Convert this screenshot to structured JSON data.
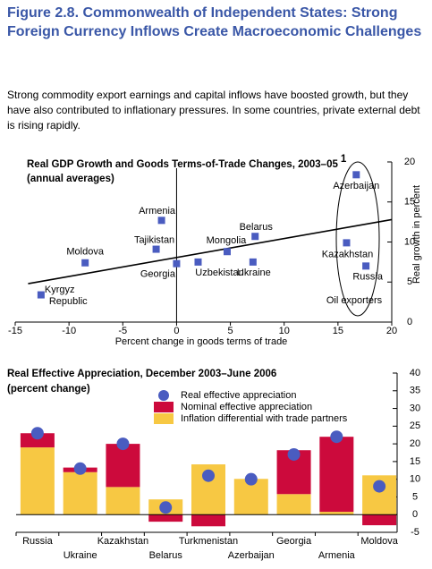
{
  "header": {
    "title": "Figure 2.8.  Commonwealth of Independent States: Strong Foreign Currency Inflows Create Macroeconomic Challenges",
    "subtitle": "Strong commodity export earnings and capital inflows have boosted growth, but they have also contributed to inflationary pressures. In some countries, private external debt is rising rapidly."
  },
  "chart_data": [
    {
      "type": "scatter",
      "title": "Real GDP Growth and Goods Terms-of-Trade Changes, 2003–05",
      "title_note": "1",
      "subtitle": "(annual averages)",
      "x_label": "Percent change in goods terms of trade",
      "y_label": "Real growth in percent",
      "series": [
        {
          "name": null,
          "color": "#4a5cc0",
          "labels": [
            "Kyrgyz Republic",
            "Moldova",
            "Armenia",
            "Tajikistan",
            "Georgia",
            "Uzbekistan",
            "Mongolia",
            "Belarus",
            "Ukraine",
            "Kazakhstan",
            "Russia",
            "Azerbaijan"
          ],
          "x": [
            -12.6,
            -8.5,
            -1.4,
            -1.9,
            0.0,
            2.0,
            4.7,
            7.3,
            7.1,
            15.8,
            17.6,
            16.7
          ],
          "values": [
            3.4,
            7.4,
            12.7,
            9.1,
            7.3,
            7.5,
            8.8,
            10.7,
            7.5,
            9.9,
            7.0,
            18.4
          ]
        }
      ],
      "trendline": {
        "x": [
          -13.8,
          20
        ],
        "y": [
          4.8,
          12.8
        ]
      },
      "annotations": [
        "Oil exporters"
      ],
      "xlim": [
        -15,
        20
      ],
      "xticks": [
        -15,
        -10,
        -5,
        0,
        5,
        10,
        15,
        20
      ],
      "ylim": [
        0,
        20
      ],
      "yticks": [
        0,
        5,
        10,
        15,
        20
      ]
    },
    {
      "type": "stacked_bar",
      "title": "Real Effective Appreciation, December 2003–June 2006",
      "subtitle": "(percent change)",
      "categories": [
        "Russia",
        "Ukraine",
        "Kazakhstan",
        "Belarus",
        "Turkmenistan",
        "Azerbaijan",
        "Georgia",
        "Armenia",
        "Moldova"
      ],
      "series": [
        {
          "name": "Inflation differential with trade partners",
          "color": "#f7c843",
          "values": [
            19,
            12,
            7.8,
            4.3,
            14.2,
            10.1,
            5.8,
            0.8,
            11.1
          ]
        },
        {
          "name": "Nominal effective appreciation",
          "color": "#cc0a3c",
          "values": [
            4,
            1.3,
            12.2,
            -2,
            -3.3,
            0,
            12.4,
            21.2,
            -3
          ]
        }
      ],
      "dots": {
        "name": "Real effective appreciation",
        "color": "#4a5cc0",
        "values": [
          23,
          13,
          20,
          2,
          11,
          10,
          17,
          22,
          8
        ]
      },
      "ylim": [
        -5,
        40
      ],
      "yticks": [
        -5,
        0,
        5,
        10,
        15,
        20,
        25,
        30,
        35,
        40
      ]
    }
  ]
}
